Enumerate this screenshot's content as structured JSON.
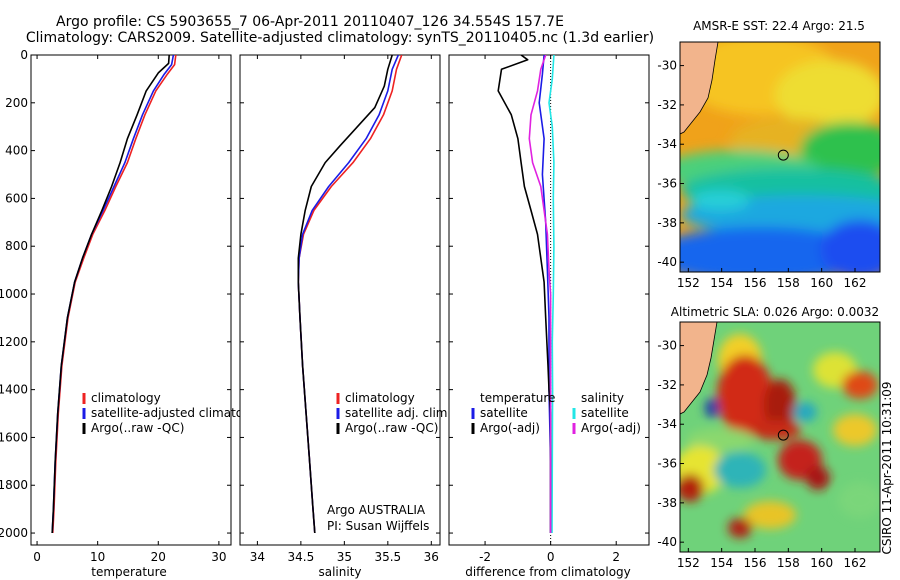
{
  "header": {
    "line1": "Argo profile: CS 5903655_7 06-Apr-2011 20110407_126 34.554S 157.7E",
    "line2": "Climatology: CARS2009. Satellite-adjusted climatology: synTS_20110405.nc (1.3d earlier)"
  },
  "footer": {
    "credit": "CSIRO 11-Apr-2011 10:31:09",
    "argo_line1": "Argo AUSTRALIA",
    "argo_line2": "PI: Susan Wijffels"
  },
  "colors": {
    "climatology": "#ee2222",
    "satellite": "#1b1be6",
    "argo": "#000000",
    "salinity_satellite": "#22e6e6",
    "salinity_argo": "#e022e0",
    "land": "#f2b48c"
  },
  "chart_data": [
    {
      "type": "line",
      "id": "temperature",
      "xlabel": "temperature",
      "ylabel": "",
      "xlim": [
        -1,
        32
      ],
      "ylim": [
        2050,
        0
      ],
      "xticks": [
        "0",
        "10",
        "20",
        "30"
      ],
      "yticks": [
        "0",
        "200",
        "400",
        "600",
        "800",
        "1000",
        "1200",
        "1400",
        "1600",
        "1800",
        "2000"
      ],
      "legend": [
        {
          "label": "climatology",
          "series": "climatology"
        },
        {
          "label": "satellite-adjusted climatology",
          "series": "satellite"
        },
        {
          "label": "Argo(..raw -QC)",
          "series": "argo"
        }
      ],
      "series": [
        {
          "name": "climatology",
          "points": [
            [
              22.9,
              0
            ],
            [
              22.7,
              40
            ],
            [
              21.5,
              80
            ],
            [
              19.6,
              150
            ],
            [
              17.8,
              250
            ],
            [
              16.3,
              350
            ],
            [
              14.9,
              450
            ],
            [
              13.0,
              550
            ],
            [
              11.2,
              650
            ],
            [
              9.2,
              750
            ],
            [
              7.7,
              850
            ],
            [
              6.3,
              950
            ],
            [
              5.1,
              1100
            ],
            [
              4.1,
              1300
            ],
            [
              3.5,
              1500
            ],
            [
              3.1,
              1700
            ],
            [
              2.8,
              1900
            ],
            [
              2.6,
              2000
            ]
          ]
        },
        {
          "name": "satellite",
          "points": [
            [
              22.5,
              0
            ],
            [
              22.2,
              40
            ],
            [
              21.0,
              80
            ],
            [
              19.2,
              150
            ],
            [
              17.4,
              250
            ],
            [
              15.9,
              350
            ],
            [
              14.5,
              450
            ],
            [
              12.7,
              550
            ],
            [
              10.9,
              650
            ],
            [
              9.0,
              750
            ],
            [
              7.5,
              850
            ],
            [
              6.2,
              950
            ],
            [
              5.0,
              1100
            ],
            [
              4.0,
              1300
            ],
            [
              3.4,
              1500
            ],
            [
              3.0,
              1700
            ],
            [
              2.7,
              1900
            ],
            [
              2.5,
              2000
            ]
          ]
        },
        {
          "name": "argo",
          "points": [
            [
              21.8,
              0
            ],
            [
              21.7,
              35
            ],
            [
              20.0,
              75
            ],
            [
              18.0,
              150
            ],
            [
              16.5,
              250
            ],
            [
              14.9,
              350
            ],
            [
              13.7,
              450
            ],
            [
              12.3,
              550
            ],
            [
              10.7,
              650
            ],
            [
              9.0,
              750
            ],
            [
              7.5,
              850
            ],
            [
              6.2,
              950
            ],
            [
              5.0,
              1100
            ],
            [
              4.0,
              1300
            ],
            [
              3.4,
              1500
            ],
            [
              3.0,
              1700
            ],
            [
              2.7,
              1900
            ],
            [
              2.5,
              2000
            ]
          ]
        }
      ]
    },
    {
      "type": "line",
      "id": "salinity",
      "xlabel": "salinity",
      "ylabel": "",
      "xlim": [
        33.8,
        36.1
      ],
      "ylim": [
        2050,
        0
      ],
      "xticks": [
        "34",
        "34.5",
        "35",
        "35.5",
        "36"
      ],
      "legend": [
        {
          "label": "climatology",
          "series": "climatology"
        },
        {
          "label": "satellite adj. clim.",
          "series": "satellite"
        },
        {
          "label": "Argo(..raw -QC)",
          "series": "argo"
        }
      ],
      "series": [
        {
          "name": "climatology",
          "points": [
            [
              35.66,
              0
            ],
            [
              35.6,
              60
            ],
            [
              35.55,
              150
            ],
            [
              35.45,
              250
            ],
            [
              35.3,
              350
            ],
            [
              35.1,
              450
            ],
            [
              34.85,
              550
            ],
            [
              34.65,
              650
            ],
            [
              34.53,
              750
            ],
            [
              34.48,
              850
            ],
            [
              34.47,
              950
            ],
            [
              34.49,
              1100
            ],
            [
              34.52,
              1300
            ],
            [
              34.56,
              1500
            ],
            [
              34.6,
              1700
            ],
            [
              34.64,
              1900
            ],
            [
              34.66,
              2000
            ]
          ]
        },
        {
          "name": "satellite",
          "points": [
            [
              35.62,
              0
            ],
            [
              35.55,
              60
            ],
            [
              35.5,
              150
            ],
            [
              35.4,
              250
            ],
            [
              35.25,
              350
            ],
            [
              35.05,
              450
            ],
            [
              34.82,
              550
            ],
            [
              34.63,
              650
            ],
            [
              34.52,
              750
            ],
            [
              34.48,
              850
            ],
            [
              34.47,
              950
            ],
            [
              34.49,
              1100
            ],
            [
              34.52,
              1300
            ],
            [
              34.56,
              1500
            ],
            [
              34.6,
              1700
            ],
            [
              34.64,
              1900
            ],
            [
              34.66,
              2000
            ]
          ]
        },
        {
          "name": "argo",
          "points": [
            [
              35.55,
              0
            ],
            [
              35.5,
              60
            ],
            [
              35.46,
              130
            ],
            [
              35.35,
              220
            ],
            [
              35.15,
              300
            ],
            [
              34.95,
              380
            ],
            [
              34.78,
              450
            ],
            [
              34.62,
              550
            ],
            [
              34.55,
              650
            ],
            [
              34.5,
              750
            ],
            [
              34.47,
              850
            ],
            [
              34.47,
              950
            ],
            [
              34.49,
              1100
            ],
            [
              34.52,
              1300
            ],
            [
              34.56,
              1500
            ],
            [
              34.6,
              1700
            ],
            [
              34.64,
              1900
            ],
            [
              34.66,
              2000
            ]
          ]
        }
      ]
    },
    {
      "type": "line",
      "id": "difference",
      "xlabel": "difference from climatology",
      "ylabel": "",
      "xlim": [
        -3.1,
        3.0
      ],
      "ylim": [
        2050,
        0
      ],
      "xticks": [
        "-2",
        "0",
        "2"
      ],
      "legend_left": [
        {
          "label": "temperature",
          "series": ""
        },
        {
          "label": "satellite",
          "series": "temp_satellite"
        },
        {
          "label": "Argo(-adj)",
          "series": "temp_argo"
        }
      ],
      "legend_right": [
        {
          "label": "salinity",
          "series": ""
        },
        {
          "label": "satellite",
          "series": "sal_satellite"
        },
        {
          "label": "Argo(-adj)",
          "series": "sal_argo"
        }
      ],
      "series": [
        {
          "name": "temp_satellite",
          "points": [
            [
              -0.2,
              0
            ],
            [
              -0.25,
              80
            ],
            [
              -0.35,
              200
            ],
            [
              -0.2,
              350
            ],
            [
              -0.25,
              500
            ],
            [
              -0.15,
              700
            ],
            [
              -0.1,
              900
            ],
            [
              -0.05,
              1100
            ],
            [
              -0.05,
              1400
            ],
            [
              0,
              1700
            ],
            [
              0,
              2000
            ]
          ]
        },
        {
          "name": "temp_argo",
          "points": [
            [
              -0.9,
              0
            ],
            [
              -0.7,
              20
            ],
            [
              -1.5,
              60
            ],
            [
              -1.6,
              150
            ],
            [
              -1.2,
              250
            ],
            [
              -1.0,
              350
            ],
            [
              -0.9,
              450
            ],
            [
              -0.8,
              550
            ],
            [
              -0.6,
              650
            ],
            [
              -0.4,
              750
            ],
            [
              -0.3,
              850
            ],
            [
              -0.2,
              950
            ],
            [
              -0.15,
              1100
            ],
            [
              -0.08,
              1300
            ],
            [
              -0.05,
              1400
            ],
            [
              0,
              1500
            ],
            [
              0,
              2000
            ]
          ]
        },
        {
          "name": "sal_satellite",
          "points": [
            [
              0.1,
              0
            ],
            [
              0.05,
              100
            ],
            [
              -0.05,
              200
            ],
            [
              0.05,
              300
            ],
            [
              0.1,
              450
            ],
            [
              0.08,
              600
            ],
            [
              0.1,
              800
            ],
            [
              0.08,
              1000
            ],
            [
              0.05,
              1200
            ],
            [
              0.06,
              1400
            ],
            [
              0.05,
              1700
            ],
            [
              0.04,
              2000
            ]
          ]
        },
        {
          "name": "sal_argo",
          "points": [
            [
              -0.15,
              0
            ],
            [
              -0.3,
              60
            ],
            [
              -0.4,
              150
            ],
            [
              -0.6,
              250
            ],
            [
              -0.65,
              350
            ],
            [
              -0.55,
              450
            ],
            [
              -0.3,
              550
            ],
            [
              -0.2,
              650
            ],
            [
              -0.1,
              750
            ],
            [
              -0.05,
              900
            ],
            [
              0,
              1000
            ],
            [
              0,
              2000
            ]
          ]
        }
      ]
    },
    {
      "type": "heatmap",
      "id": "sst_map",
      "title": "AMSR-E SST: 22.4 Argo: 21.5",
      "xlim": [
        151.5,
        163.5
      ],
      "ylim": [
        -40.5,
        -28.8
      ],
      "xticks": [
        "152",
        "154",
        "156",
        "158",
        "160",
        "162"
      ],
      "yticks": [
        "-30",
        "-32",
        "-34",
        "-36",
        "-38",
        "-40"
      ],
      "marker": {
        "lon": 157.7,
        "lat": -34.554
      }
    },
    {
      "type": "heatmap",
      "id": "sla_map",
      "title": "Altimetric SLA: 0.026 Argo: 0.0032",
      "xlim": [
        151.5,
        163.5
      ],
      "ylim": [
        -40.5,
        -28.8
      ],
      "xticks": [
        "152",
        "154",
        "156",
        "158",
        "160",
        "162"
      ],
      "yticks": [
        "-30",
        "-32",
        "-34",
        "-36",
        "-38",
        "-40"
      ],
      "marker": {
        "lon": 157.7,
        "lat": -34.554
      }
    }
  ]
}
